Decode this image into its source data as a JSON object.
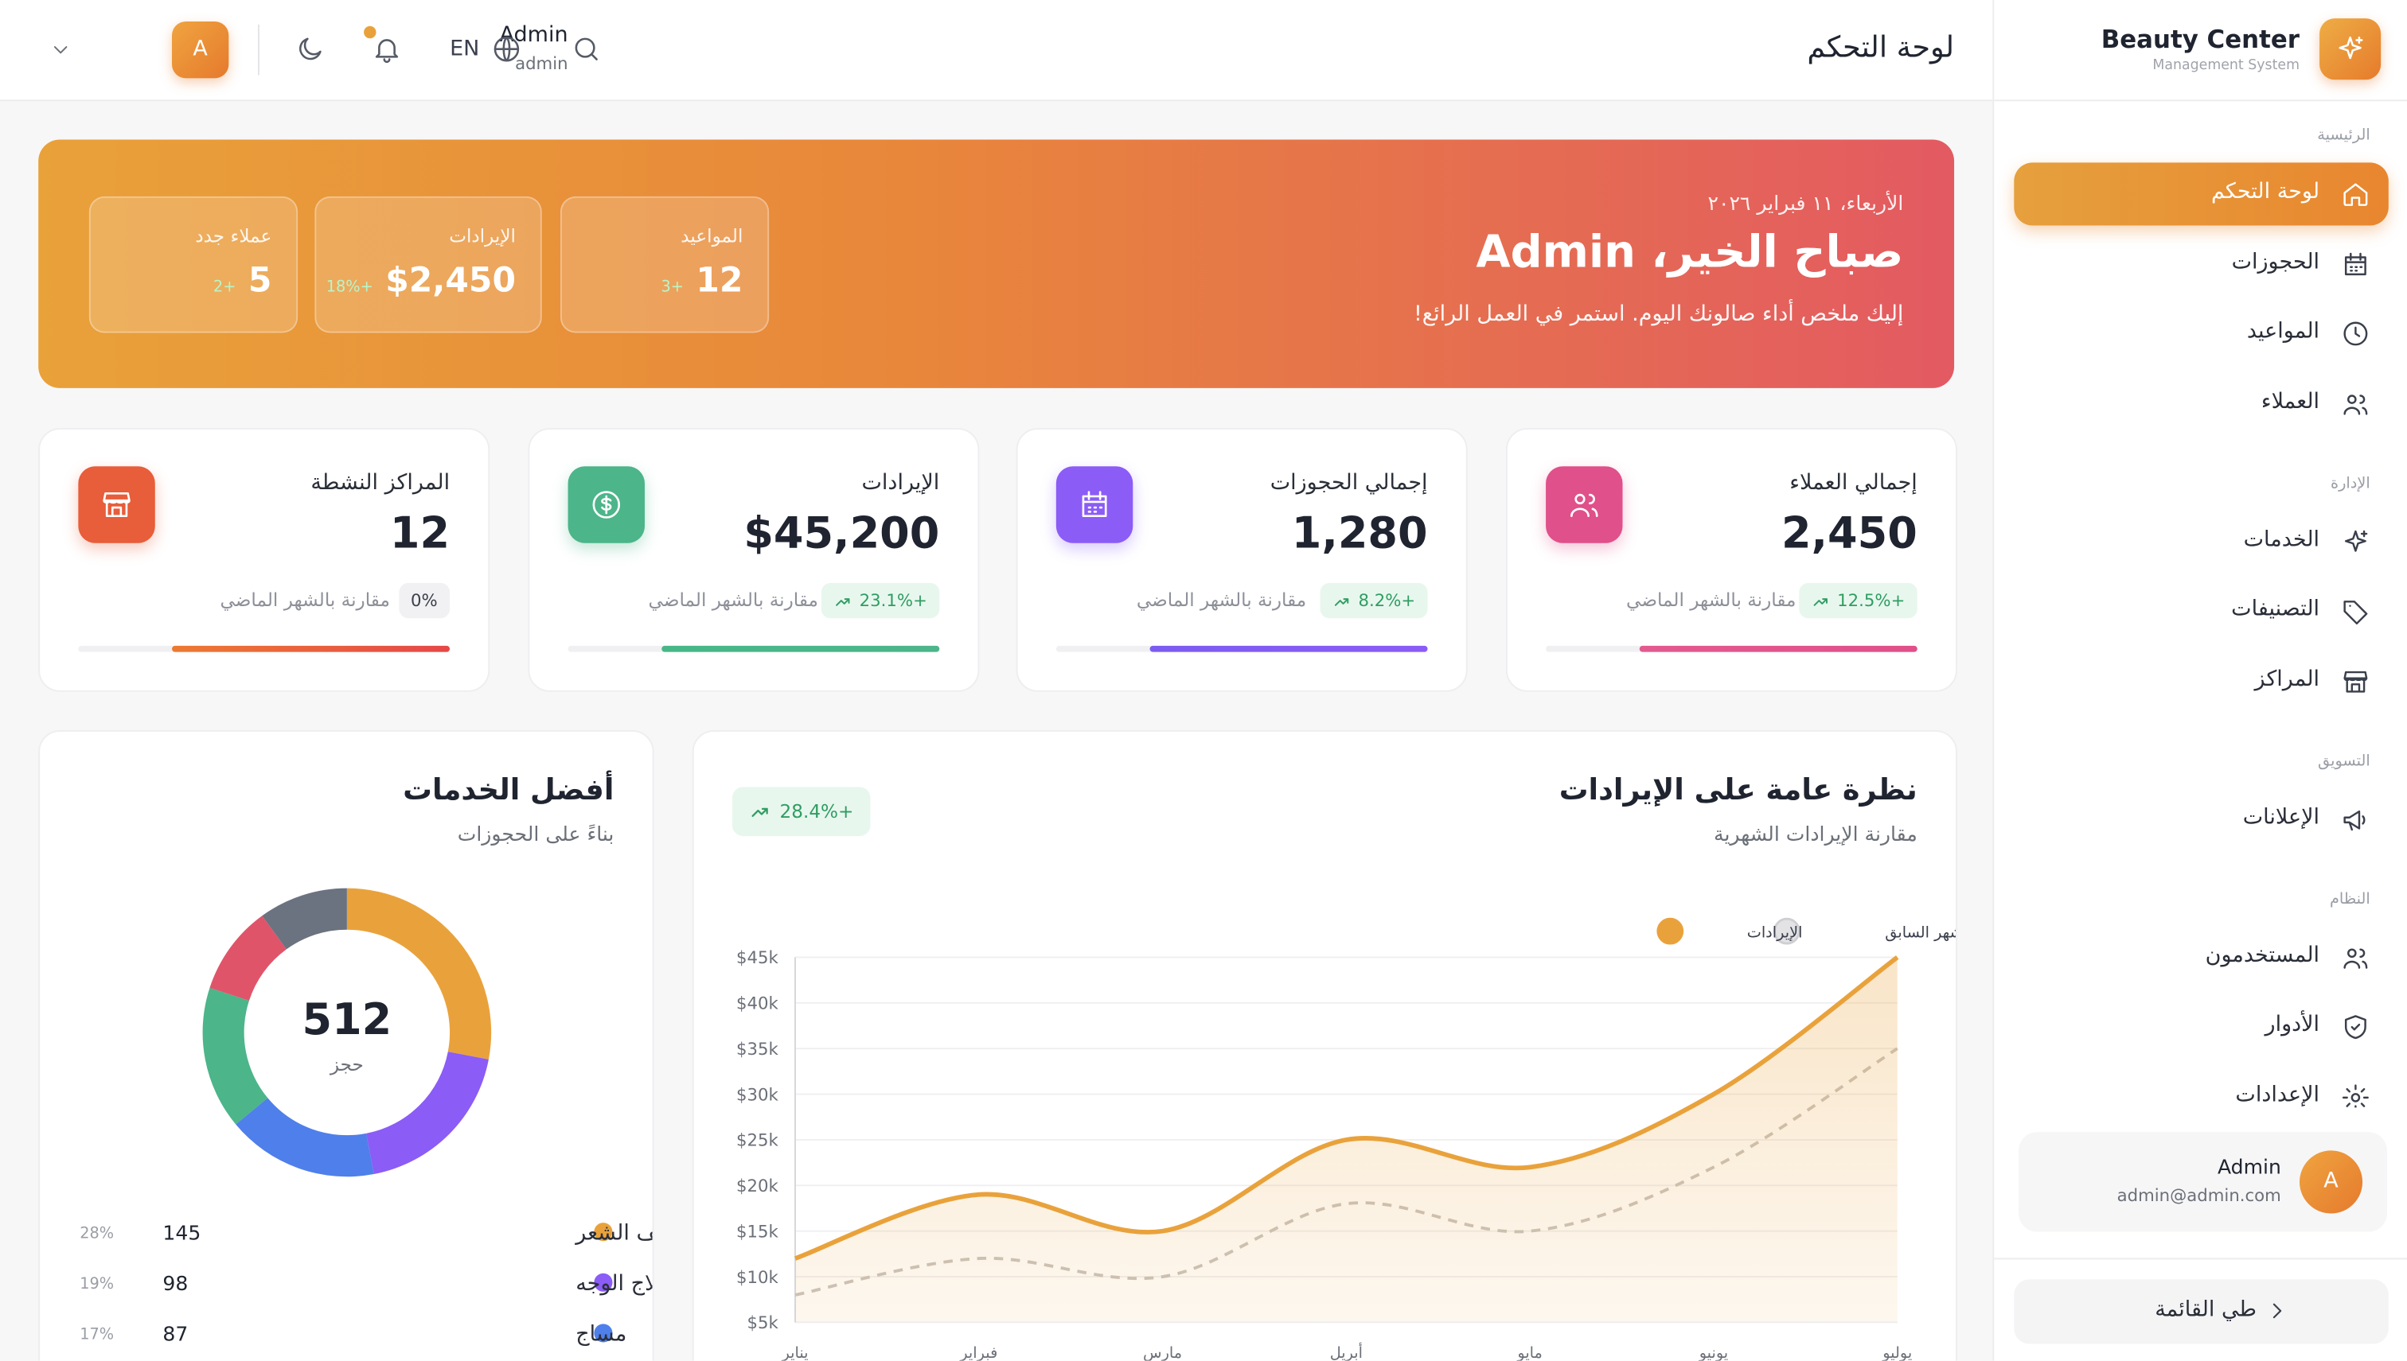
{
  "sidebar": {
    "brand": "Beauty Center",
    "brand_sub": "Management System",
    "sections": [
      {
        "title": "الرئيسية",
        "items": [
          "لوحة التحكم",
          "الحجوزات",
          "المواعيد",
          "العملاء"
        ]
      },
      {
        "title": "الإدارة",
        "items": [
          "الخدمات",
          "التصنيفات",
          "المراكز"
        ]
      },
      {
        "title": "التسويق",
        "items": [
          "الإعلانات"
        ]
      },
      {
        "title": "النظام",
        "items": [
          "المستخدمون",
          "الأدوار",
          "الإعدادات"
        ]
      }
    ],
    "user": {
      "name": "Admin",
      "email": "admin@admin.com",
      "initial": "A"
    },
    "collapse": "طي القائمة"
  },
  "header": {
    "title": "لوحة التحكم",
    "user_name": "Admin",
    "user_role": "admin",
    "initial": "A",
    "language": "EN"
  },
  "banner": {
    "date": "الأربعاء، ١١ فبراير ٢٠٢٦",
    "greeting": "صباح الخير، Admin",
    "subtitle": "إليك ملخص أداء صالونك اليوم. استمر في العمل الرائع!",
    "stats": [
      {
        "label": "المواعيد",
        "value": "12",
        "change": "+3"
      },
      {
        "label": "الإيرادات",
        "value": "$2,450",
        "change": "+18%"
      },
      {
        "label": "عملاء جدد",
        "value": "5",
        "change": "+2"
      }
    ]
  },
  "cards": [
    {
      "label": "إجمالي العملاء",
      "value": "2,450",
      "change": "+12.5%",
      "note": "مقارنة بالشهر الماضي"
    },
    {
      "label": "إجمالي الحجوزات",
      "value": "1,280",
      "change": "+8.2%",
      "note": "مقارنة بالشهر الماضي"
    },
    {
      "label": "الإيرادات",
      "value": "$45,200",
      "change": "+23.1%",
      "note": "مقارنة بالشهر الماضي"
    },
    {
      "label": "المراكز النشطة",
      "value": "12",
      "change": "0%",
      "note": "مقارنة بالشهر الماضي"
    }
  ],
  "revenue_chart": {
    "type": "line",
    "title": "نظرة عامة على الإيرادات",
    "subtitle": "مقارنة الإيرادات الشهرية",
    "badge": "+28.4%",
    "categories": [
      "يناير",
      "فبراير",
      "مارس",
      "أبريل",
      "مايو",
      "يونيو",
      "يوليو"
    ],
    "series": [
      {
        "name": "الإيرادات",
        "color": "#e9a23b",
        "values": [
          12000,
          19000,
          15000,
          25000,
          22000,
          30000,
          45000
        ]
      },
      {
        "name": "الشهر السابق",
        "color": "#c9c4bf",
        "values": [
          8000,
          12000,
          10000,
          18000,
          15000,
          22000,
          35000
        ]
      }
    ],
    "ylim": [
      5000,
      45000
    ],
    "yticks": [
      {
        "value": 5000,
        "label": "$5k"
      },
      {
        "value": 10000,
        "label": "$10k"
      },
      {
        "value": 15000,
        "label": "$15k"
      },
      {
        "value": 20000,
        "label": "$20k"
      },
      {
        "value": 25000,
        "label": "$25k"
      },
      {
        "value": 30000,
        "label": "$30k"
      },
      {
        "value": 35000,
        "label": "$35k"
      },
      {
        "value": 40000,
        "label": "$40k"
      },
      {
        "value": 45000,
        "label": "$45k"
      }
    ],
    "grid": true
  },
  "top_services": {
    "type": "donut",
    "title": "أفضل الخدمات",
    "subtitle": "بناءً على الحجوزات",
    "total": "512",
    "total_label": "حجز",
    "categories": [
      "تصفيف الشعر",
      "علاج الوجه",
      "مساج",
      null,
      null,
      null
    ],
    "values": [
      28,
      19,
      17,
      16,
      10,
      10
    ],
    "value_labels": [
      "28%",
      "19%",
      "17%",
      null,
      null,
      null
    ],
    "counts": [
      145,
      98,
      87,
      null,
      null,
      null
    ],
    "colors": [
      "#e9a23b",
      "#8b5cf6",
      "#4f7fea",
      "#4cb58a",
      "#e0546a",
      "#6b7280"
    ]
  }
}
